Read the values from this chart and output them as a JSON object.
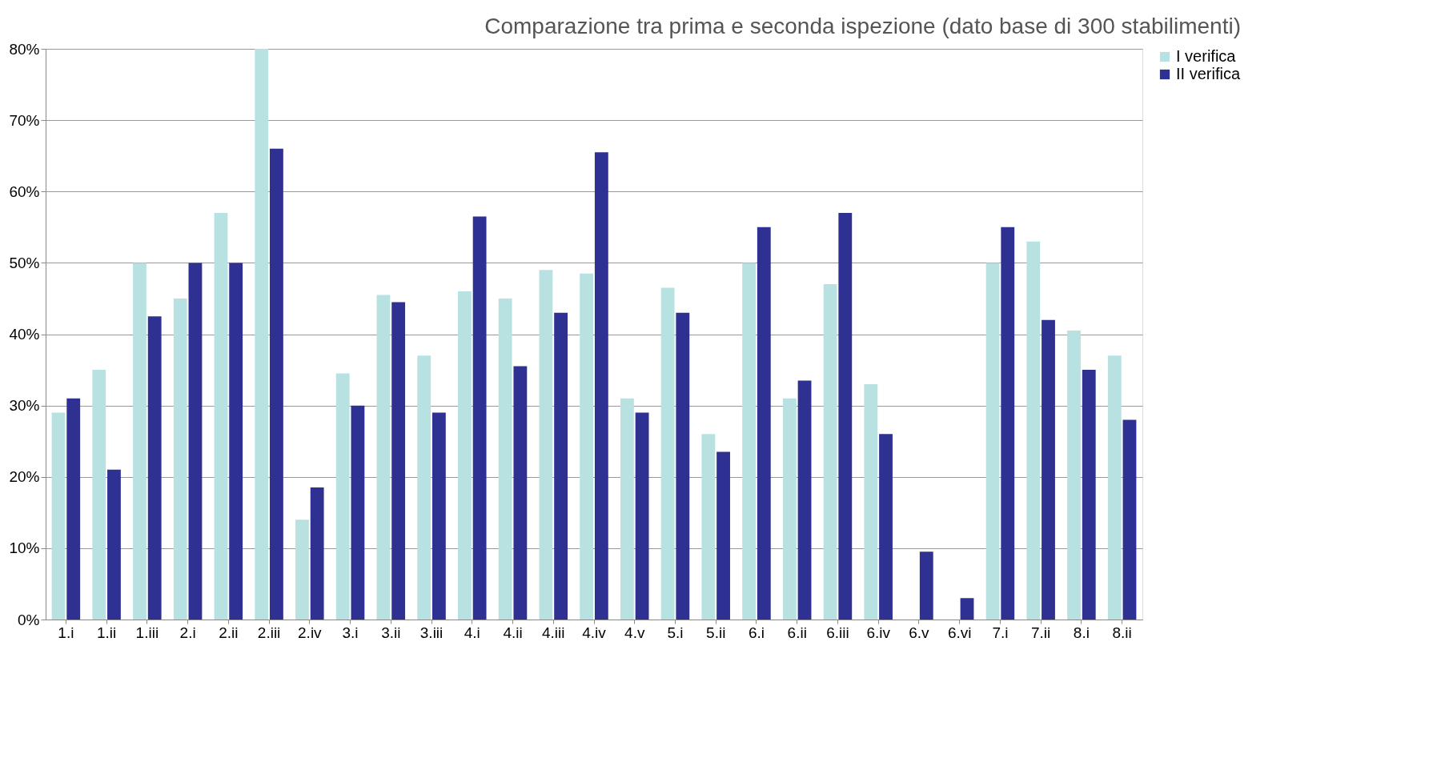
{
  "chart_data": {
    "type": "bar",
    "title": "Comparazione tra prima e seconda ispezione (dato base di 300 stabilimenti)",
    "categories": [
      "1.i",
      "1.ii",
      "1.iii",
      "2.i",
      "2.ii",
      "2.iii",
      "2.iv",
      "3.i",
      "3.ii",
      "3.iii",
      "4.i",
      "4.ii",
      "4.iii",
      "4.iv",
      "4.v",
      "5.i",
      "5.ii",
      "6.i",
      "6.ii",
      "6.iii",
      "6.iv",
      "6.v",
      "6.vi",
      "7.i",
      "7.ii",
      "8.i",
      "8.ii"
    ],
    "series": [
      {
        "name": "I verifica",
        "color": "#b8e2e2",
        "values": [
          29,
          35,
          50,
          45,
          57,
          80,
          14,
          34.5,
          45.5,
          37,
          46,
          45,
          49,
          48.5,
          31,
          46.5,
          26,
          50,
          31,
          47,
          33,
          0,
          0,
          50,
          53,
          40.5,
          37
        ]
      },
      {
        "name": "II verifica",
        "color": "#2e3192",
        "values": [
          31,
          21,
          42.5,
          50,
          50,
          66,
          18.5,
          30,
          44.5,
          29,
          56.5,
          35.5,
          43,
          65.5,
          29,
          43,
          23.5,
          55,
          33.5,
          57,
          26,
          9.5,
          3,
          55,
          42,
          35,
          28
        ]
      }
    ],
    "ylim": [
      0,
      80
    ],
    "yticks": [
      {
        "value": 0,
        "label": "0%"
      },
      {
        "value": 10,
        "label": "10%"
      },
      {
        "value": 20,
        "label": "20%"
      },
      {
        "value": 30,
        "label": "30%"
      },
      {
        "value": 40,
        "label": "40%"
      },
      {
        "value": 50,
        "label": "50%"
      },
      {
        "value": 60,
        "label": "60%"
      },
      {
        "value": 70,
        "label": "70%"
      },
      {
        "value": 80,
        "label": "80%"
      }
    ],
    "grid": "y",
    "legend": "right"
  }
}
